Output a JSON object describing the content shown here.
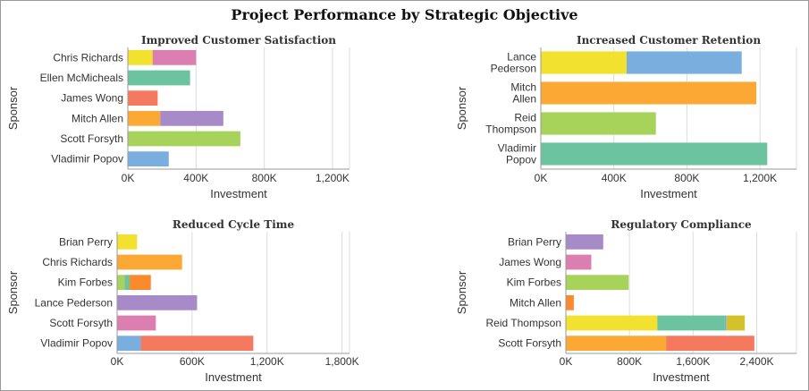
{
  "title": "Project Performance by Strategic Objective",
  "chart_data": [
    {
      "type": "bar",
      "orientation": "horizontal",
      "stacked": true,
      "title": "Improved Customer Satisfaction",
      "xlabel": "Investment",
      "ylabel": "Sponsor",
      "xlim": [
        0,
        1300000
      ],
      "xticks": [
        0,
        400000,
        800000,
        1200000
      ],
      "xtick_labels": [
        "0K",
        "400K",
        "800K",
        "1,200K"
      ],
      "categories": [
        "Chris Richards",
        "Ellen McMicheals",
        "James Wong",
        "Mitch Allen",
        "Scott Forsyth",
        "Vladimir Popov"
      ],
      "category_lines": [
        [
          "Chris Richards"
        ],
        [
          "Ellen McMicheals"
        ],
        [
          "James Wong"
        ],
        [
          "Mitch Allen"
        ],
        [
          "Scott Forsyth"
        ],
        [
          "Vladimir Popov"
        ]
      ],
      "bars": [
        [
          {
            "value": 145000,
            "color": "#f2e12f"
          },
          {
            "value": 255000,
            "color": "#db7fb0"
          }
        ],
        [
          {
            "value": 365000,
            "color": "#6cc3a0"
          }
        ],
        [
          {
            "value": 175000,
            "color": "#f5795f"
          }
        ],
        [
          {
            "value": 190000,
            "color": "#fba934"
          },
          {
            "value": 370000,
            "color": "#a78bc9"
          }
        ],
        [
          {
            "value": 660000,
            "color": "#a8d35b"
          }
        ],
        [
          {
            "value": 240000,
            "color": "#79aede"
          }
        ]
      ]
    },
    {
      "type": "bar",
      "orientation": "horizontal",
      "stacked": true,
      "title": "Increased Customer Retention",
      "xlabel": "Investment",
      "ylabel": "Sponsor",
      "xlim": [
        0,
        1400000
      ],
      "xticks": [
        0,
        400000,
        800000,
        1200000
      ],
      "xtick_labels": [
        "0K",
        "400K",
        "800K",
        "1,200K"
      ],
      "categories": [
        "Lance Pederson",
        "Mitch Allen",
        "Reid Thompson",
        "Vladimir Popov"
      ],
      "category_lines": [
        [
          "Lance",
          "Pederson"
        ],
        [
          "Mitch",
          "Allen"
        ],
        [
          "Reid",
          "Thompson"
        ],
        [
          "Vladimir",
          "Popov"
        ]
      ],
      "bars": [
        [
          {
            "value": 470000,
            "color": "#f2e12f"
          },
          {
            "value": 630000,
            "color": "#79aede"
          }
        ],
        [
          {
            "value": 1180000,
            "color": "#fba934"
          }
        ],
        [
          {
            "value": 630000,
            "color": "#a8d35b"
          }
        ],
        [
          {
            "value": 1240000,
            "color": "#6cc3a0"
          }
        ]
      ]
    },
    {
      "type": "bar",
      "orientation": "horizontal",
      "stacked": true,
      "title": "Reduced Cycle Time",
      "xlabel": "Investment",
      "ylabel": "Sponsor",
      "xlim": [
        0,
        1860000
      ],
      "xticks": [
        0,
        600000,
        1200000,
        1800000
      ],
      "xtick_labels": [
        "0K",
        "600K",
        "1,200K",
        "1,800K"
      ],
      "categories": [
        "Brian Perry",
        "Chris Richards",
        "Kim Forbes",
        "Lance Pederson",
        "Scott Forsyth",
        "Vladimir Popov"
      ],
      "category_lines": [
        [
          "Brian Perry"
        ],
        [
          "Chris Richards"
        ],
        [
          "Kim Forbes"
        ],
        [
          "Lance Pederson"
        ],
        [
          "Scott Forsyth"
        ],
        [
          "Vladimir Popov"
        ]
      ],
      "bars": [
        [
          {
            "value": 160000,
            "color": "#f2e12f"
          }
        ],
        [
          {
            "value": 520000,
            "color": "#fba934"
          }
        ],
        [
          {
            "value": 60000,
            "color": "#a8d35b"
          },
          {
            "value": 40000,
            "color": "#6cc3a0"
          },
          {
            "value": 170000,
            "color": "#fb8a2c"
          }
        ],
        [
          {
            "value": 640000,
            "color": "#a78bc9"
          }
        ],
        [
          {
            "value": 310000,
            "color": "#db7fb0"
          }
        ],
        [
          {
            "value": 190000,
            "color": "#79aede"
          },
          {
            "value": 900000,
            "color": "#f5795f"
          }
        ]
      ]
    },
    {
      "type": "bar",
      "orientation": "horizontal",
      "stacked": true,
      "title": "Regulatory Compliance",
      "xlabel": "Investment",
      "ylabel": "Sponsor",
      "xlim": [
        0,
        2900000
      ],
      "xticks": [
        0,
        800000,
        1600000,
        2400000
      ],
      "xtick_labels": [
        "0K",
        "800K",
        "1,600K",
        "2,400K"
      ],
      "categories": [
        "Brian Perry",
        "James Wong",
        "Kim Forbes",
        "Mitch Allen",
        "Reid Thompson",
        "Scott Forsyth"
      ],
      "category_lines": [
        [
          "Brian Perry"
        ],
        [
          "James Wong"
        ],
        [
          "Kim Forbes"
        ],
        [
          "Mitch Allen"
        ],
        [
          "Reid Thompson"
        ],
        [
          "Scott Forsyth"
        ]
      ],
      "bars": [
        [
          {
            "value": 470000,
            "color": "#a78bc9"
          }
        ],
        [
          {
            "value": 320000,
            "color": "#db7fb0"
          }
        ],
        [
          {
            "value": 790000,
            "color": "#a8d35b"
          }
        ],
        [
          {
            "value": 100000,
            "color": "#fb8a2c"
          }
        ],
        [
          {
            "value": 1150000,
            "color": "#f2e12f"
          },
          {
            "value": 850000,
            "color": "#6cc3a0"
          },
          {
            "value": 20000,
            "color": "#79aede"
          },
          {
            "value": 230000,
            "color": "#d4c22a"
          }
        ],
        [
          {
            "value": 1260000,
            "color": "#fba934"
          },
          {
            "value": 1110000,
            "color": "#f5795f"
          }
        ]
      ]
    }
  ]
}
